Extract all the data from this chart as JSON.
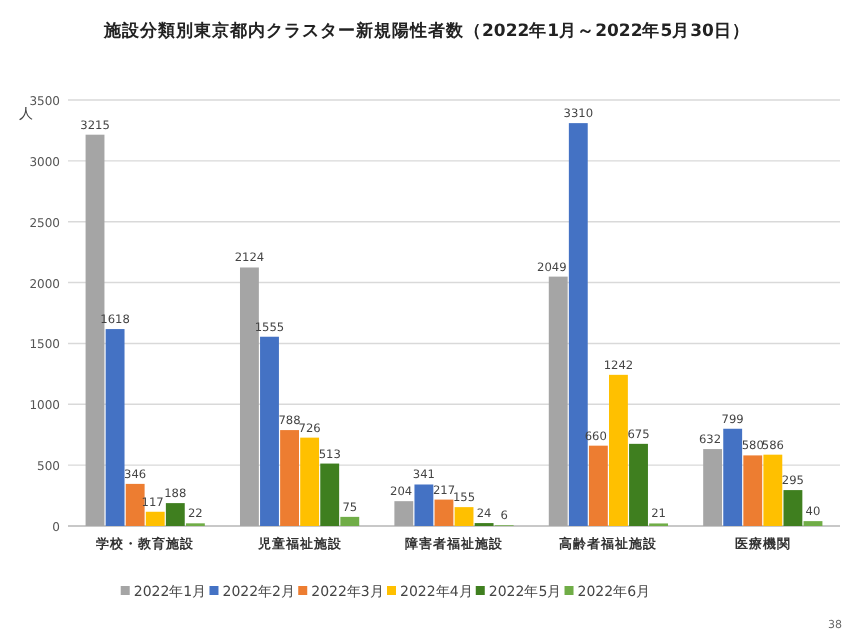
{
  "chart_data": {
    "type": "bar",
    "title": "施設分類別東京都内クラスター新規陽性者数（2022年1月～2022年5月30日）",
    "ylabel": "人",
    "categories": [
      "学校・教育施設",
      "児童福祉施設",
      "障害者福祉施設",
      "高齢者福祉施設",
      "医療機関"
    ],
    "series": [
      {
        "name": "2022年1月",
        "color": "#a5a5a5",
        "values": [
          3215,
          2124,
          204,
          2049,
          632
        ]
      },
      {
        "name": "2022年2月",
        "color": "#4472c4",
        "values": [
          1618,
          1555,
          341,
          3310,
          799
        ]
      },
      {
        "name": "2022年3月",
        "color": "#ed7d31",
        "values": [
          346,
          788,
          217,
          660,
          580
        ]
      },
      {
        "name": "2022年4月",
        "color": "#ffc000",
        "values": [
          117,
          726,
          155,
          1242,
          586
        ]
      },
      {
        "name": "2022年5月",
        "color": "#3f7f1f",
        "values": [
          188,
          513,
          24,
          675,
          295
        ]
      },
      {
        "name": "2022年6月",
        "color": "#70ad47",
        "values": [
          22,
          75,
          6,
          21,
          40
        ]
      }
    ],
    "ylim": [
      0,
      3500
    ],
    "yticks": [
      0,
      500,
      1000,
      1500,
      2000,
      2500,
      3000,
      3500
    ],
    "grid": "y",
    "legend": "bottom",
    "data_labels": true,
    "annotations": [
      "38"
    ]
  }
}
